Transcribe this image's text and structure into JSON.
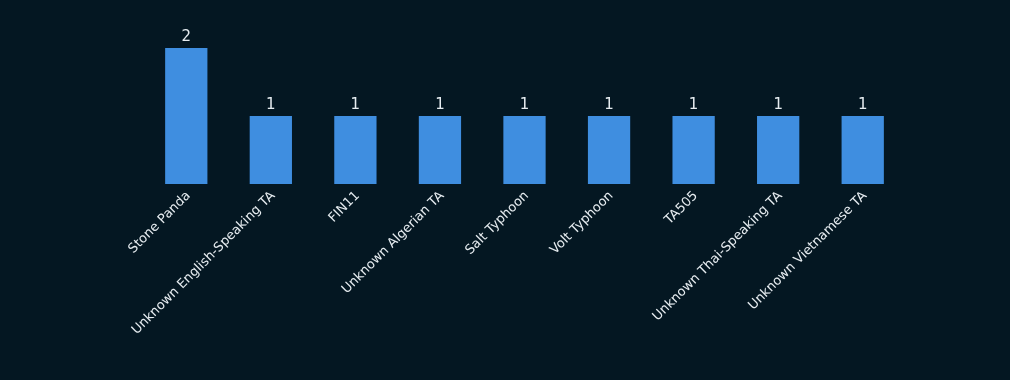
{
  "chart_data": {
    "type": "bar",
    "categories": [
      "Stone Panda",
      "Unknown English-Speaking TA",
      "FIN11",
      "Unknown Algerian TA",
      "Salt Typhoon",
      "Volt Typhoon",
      "TA505",
      "Unknown Thai-Speaking TA",
      "Unknown Vietnamese TA"
    ],
    "values": [
      2,
      1,
      1,
      1,
      1,
      1,
      1,
      1,
      1
    ],
    "color": "#3f8ee0",
    "ylim": [
      0,
      2
    ],
    "data_labels": true,
    "grid": false,
    "legend": false
  }
}
